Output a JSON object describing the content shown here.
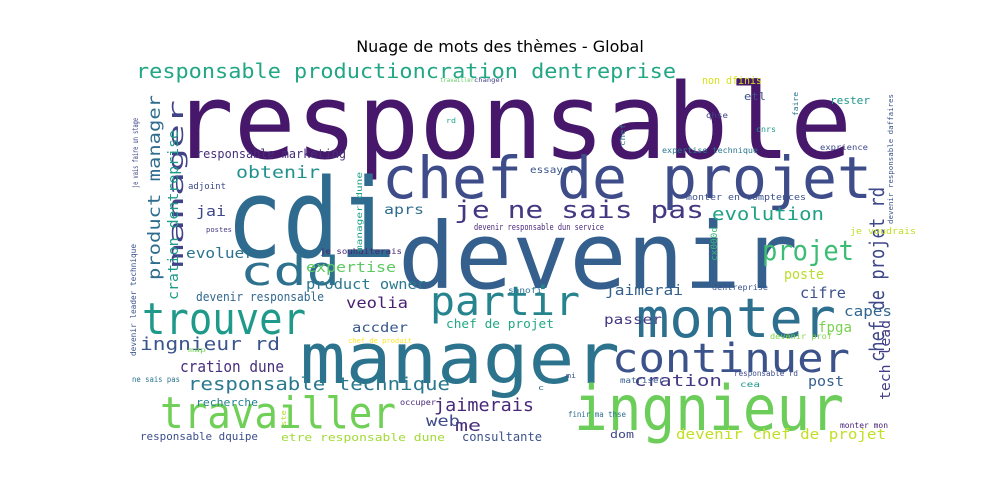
{
  "chart_data": {
    "type": "wordcloud",
    "title": "Nuage de mots des thèmes - Global",
    "words": [
      {
        "text": "responsable",
        "color": "#46176a"
      },
      {
        "text": "cdi",
        "color": "#2f6b8e"
      },
      {
        "text": "devenir",
        "color": "#35608d"
      },
      {
        "text": "manager",
        "color": "#2c738e"
      },
      {
        "text": "chef de projet",
        "color": "#3e4c8a"
      },
      {
        "text": "ingnieur",
        "color": "#6ccd5a"
      },
      {
        "text": "monter",
        "color": "#2d6f8e"
      },
      {
        "text": "travailler",
        "color": "#70cf57"
      },
      {
        "text": "trouver",
        "color": "#1f9a8a"
      },
      {
        "text": "continuer",
        "color": "#3b528b"
      },
      {
        "text": "partir",
        "color": "#25848e"
      },
      {
        "text": "cdd",
        "color": "#2d718e"
      },
      {
        "text": "je ne sais pas",
        "color": "#453882"
      },
      {
        "text": "responsable productioncration dentreprise",
        "color": "#22a785"
      },
      {
        "text": "projet",
        "color": "#3dbc74"
      },
      {
        "text": "chef de projet rd",
        "color": "#3f4889"
      },
      {
        "text": "manager",
        "color": "#404387"
      },
      {
        "text": "responsable technique",
        "color": "#2a788e"
      },
      {
        "text": "ingnieur rd",
        "color": "#3a548c"
      },
      {
        "text": "product manager",
        "color": "#2e6d8e"
      },
      {
        "text": "evolution",
        "color": "#1fa187"
      },
      {
        "text": "obtenir",
        "color": "#21918c"
      },
      {
        "text": "cration dentreprise",
        "color": "#1e9c89"
      },
      {
        "text": "jaimerais",
        "color": "#482979"
      },
      {
        "text": "cration",
        "color": "#443983"
      },
      {
        "text": "cration dune",
        "color": "#472e7c"
      },
      {
        "text": "veolia",
        "color": "#481f70"
      },
      {
        "text": "expertise",
        "color": "#5ec962"
      },
      {
        "text": "product owner",
        "color": "#2a788e"
      },
      {
        "text": "me",
        "color": "#472c7a"
      },
      {
        "text": "web",
        "color": "#3e4989"
      },
      {
        "text": "devenir chef de projet",
        "color": "#c2df23"
      },
      {
        "text": "tech lead",
        "color": "#433e85"
      },
      {
        "text": "jaimerai",
        "color": "#34608d"
      },
      {
        "text": "cifre",
        "color": "#3b528b"
      },
      {
        "text": "poste",
        "color": "#b8de29"
      },
      {
        "text": "capes",
        "color": "#31668e"
      },
      {
        "text": "fpga",
        "color": "#7ad151"
      },
      {
        "text": "post",
        "color": "#355f8d"
      },
      {
        "text": "evoluer",
        "color": "#2c728e"
      },
      {
        "text": "jai",
        "color": "#3f4788"
      },
      {
        "text": "aprs",
        "color": "#2f6c8e"
      },
      {
        "text": "accder",
        "color": "#38588c"
      },
      {
        "text": "passer",
        "color": "#453781"
      },
      {
        "text": "responsable marketing",
        "color": "#472d7b"
      },
      {
        "text": "devenir responsable",
        "color": "#31678e"
      },
      {
        "text": "chef de projet",
        "color": "#22a884"
      },
      {
        "text": "consultante",
        "color": "#3b528b"
      },
      {
        "text": "etre responsable dune",
        "color": "#a2da37"
      },
      {
        "text": "responsable dquipe",
        "color": "#3c4f8a"
      },
      {
        "text": "recherche",
        "color": "#26818e"
      },
      {
        "text": "dom",
        "color": "#3f4788"
      },
      {
        "text": "rester",
        "color": "#1f958b"
      },
      {
        "text": "etl",
        "color": "#3b528b"
      },
      {
        "text": "non dfinis",
        "color": "#d8e219"
      },
      {
        "text": "essayer",
        "color": "#39568c"
      },
      {
        "text": "adjoint",
        "color": "#3e4a89"
      },
      {
        "text": "devenir responsable dun service",
        "color": "#482677"
      },
      {
        "text": "monter en comptences",
        "color": "#3b528b"
      },
      {
        "text": "je voudrais",
        "color": "#c0df25"
      },
      {
        "text": "je souhaiterais",
        "color": "#482475"
      },
      {
        "text": "expertise technique",
        "color": "#2a788e"
      },
      {
        "text": "exprience",
        "color": "#3e4a89"
      },
      {
        "text": "devenir prof",
        "color": "#84d44b"
      },
      {
        "text": "matriser",
        "color": "#355e8d"
      },
      {
        "text": "occuper",
        "color": "#482878"
      },
      {
        "text": "sanofi",
        "color": "#2c728e"
      },
      {
        "text": "cx000d",
        "color": "#35b779"
      },
      {
        "text": "dentreprise",
        "color": "#39558c"
      },
      {
        "text": "responsable rd",
        "color": "#3e4c8a"
      },
      {
        "text": "cea",
        "color": "#1f978b"
      },
      {
        "text": "monter mon",
        "color": "#482173"
      },
      {
        "text": "finir ma thse",
        "color": "#2e6f8e"
      },
      {
        "text": "ne sais pas",
        "color": "#2a768e"
      },
      {
        "text": "je vais faire un stage",
        "color": "#404688"
      },
      {
        "text": "devenir leader technique",
        "color": "#3b528b"
      },
      {
        "text": "manager dune",
        "color": "#1fa088"
      },
      {
        "text": "chef de produit",
        "color": "#fde725"
      },
      {
        "text": "devenir responsable daffaires",
        "color": "#3b528b"
      },
      {
        "text": "cnrs",
        "color": "#1f998a"
      },
      {
        "text": "qhse",
        "color": "#414487"
      },
      {
        "text": "faire",
        "color": "#2c728e"
      },
      {
        "text": "chef",
        "color": "#2a788e"
      },
      {
        "text": "rd",
        "color": "#22a884"
      },
      {
        "text": "postes",
        "color": "#443a83"
      },
      {
        "text": "c",
        "color": "#2c728e"
      },
      {
        "text": "mi",
        "color": "#3b528b"
      },
      {
        "text": "ste",
        "color": "#b5de2b"
      },
      {
        "text": "map",
        "color": "#73d056"
      },
      {
        "text": "changer",
        "color": "#414487"
      },
      {
        "text": "travailler",
        "color": "#5ec962"
      }
    ]
  }
}
